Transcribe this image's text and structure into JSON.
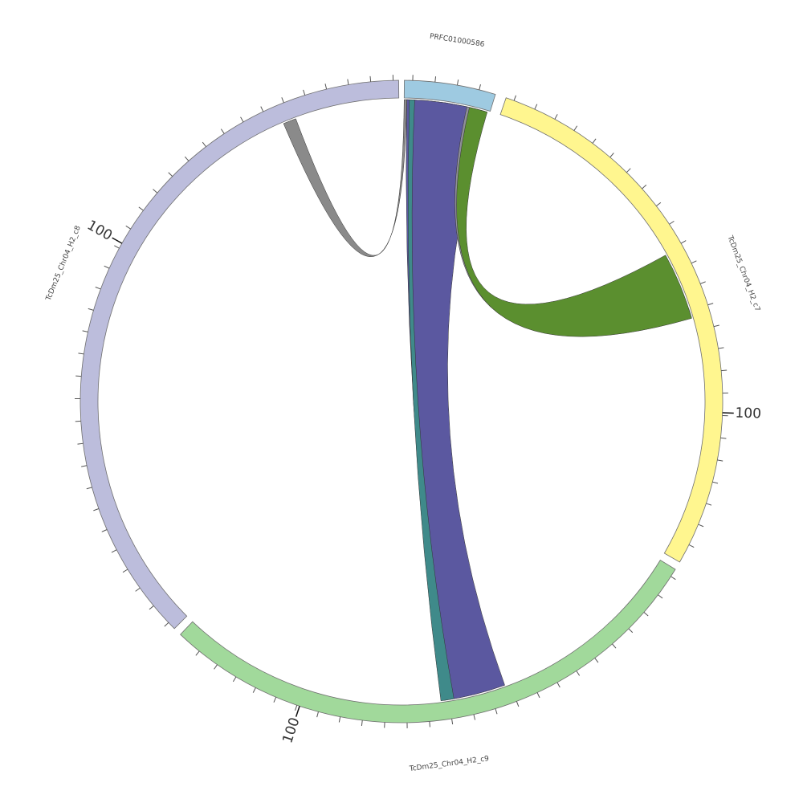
{
  "chart_data": {
    "type": "chord",
    "segments": [
      {
        "name": "PRFC01000586",
        "color": "#9ecae1",
        "start_deg": 0.5,
        "end_deg": 17.0
      },
      {
        "name": "TcDm25_Chr04_H2_c7",
        "color": "#fff68f",
        "start_deg": 19.0,
        "end_deg": 120.0
      },
      {
        "name": "TcDm25_Chr04_H2_c9",
        "color": "#a1d99b",
        "start_deg": 121.5,
        "end_deg": 223.5
      },
      {
        "name": "TcDm25_Chr04_H2_c8",
        "color": "#bcbddc",
        "start_deg": 225.0,
        "end_deg": 359.5
      }
    ],
    "tick_labels": [
      {
        "segment": "TcDm25_Chr04_H2_c7",
        "text": "100",
        "angle_deg": 92.0
      },
      {
        "segment": "TcDm25_Chr04_H2_c9",
        "text": "100",
        "angle_deg": 198.5
      },
      {
        "segment": "TcDm25_Chr04_H2_c8",
        "text": "100",
        "angle_deg": 299.5
      }
    ],
    "links": [
      {
        "source_deg": [
          1.0,
          16.0
        ],
        "target_deg": [
          1.0,
          16.0
        ],
        "color": "#5e6179",
        "dip": 0.32
      },
      {
        "source_deg": [
          1.0,
          16.0
        ],
        "target_deg": [
          160.0,
          172.0
        ],
        "color": "#5b58a0"
      },
      {
        "source_deg": [
          1.5,
          2.5
        ],
        "target_deg": [
          170.0,
          172.5
        ],
        "color": "#3f8a8a"
      },
      {
        "source_deg": [
          12.5,
          15.5
        ],
        "target_deg": [
          72.0,
          73.8
        ],
        "color": "#8e8e98"
      },
      {
        "source_deg": [
          13.0,
          16.5
        ],
        "target_deg": [
          61.0,
          74.0
        ],
        "color": "#5b8f2f"
      },
      {
        "source_deg": [
          0.5,
          1.0
        ],
        "target_deg": [
          337.0,
          339.5
        ],
        "color": "#8a8a8a"
      }
    ]
  }
}
